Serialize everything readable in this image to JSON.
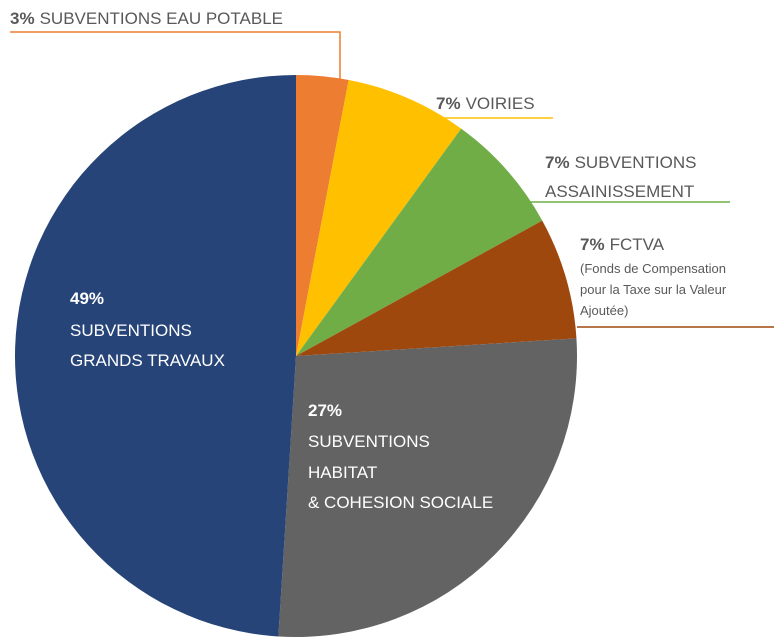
{
  "chart_data": {
    "type": "pie",
    "categories": [
      [
        "SUBVENTIONS EAU POTABLE"
      ],
      [
        "VOIRIES"
      ],
      [
        "SUBVENTIONS",
        "ASSAINISSEMENT"
      ],
      [
        "FCTVA"
      ],
      [
        "SUBVENTIONS",
        "HABITAT",
        "& COHESION SOCIALE"
      ],
      [
        "SUBVENTIONS",
        "GRANDS TRAVAUX"
      ]
    ],
    "values": [
      3,
      7,
      7,
      7,
      27,
      49
    ],
    "value_labels": [
      "3%",
      "7%",
      "7%",
      "7%",
      "27%",
      "49%"
    ],
    "colors": [
      "#ed7d31",
      "#ffc000",
      "#70ad47",
      "#9e480e",
      "#636363",
      "#264478"
    ],
    "annotation": [
      "(Fonds de Compensation",
      "pour la Taxe sur la Valeur",
      "Ajoutée)"
    ]
  }
}
